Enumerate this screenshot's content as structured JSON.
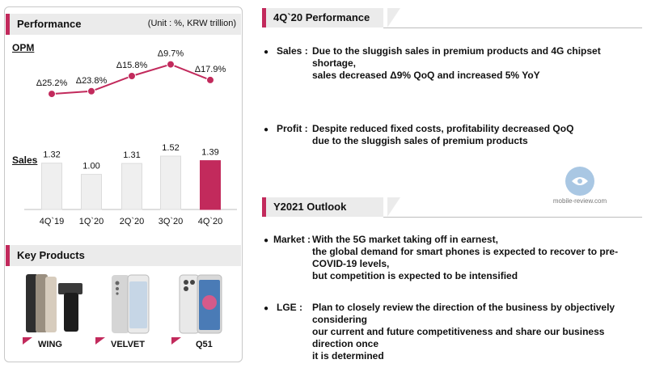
{
  "left_panel": {
    "header_title": "Performance",
    "unit": "(Unit : %, KRW trillion)",
    "opm_label": "OPM",
    "sales_label": "Sales",
    "key_products_title": "Key Products",
    "products": [
      {
        "name": "WING"
      },
      {
        "name": "VELVET"
      },
      {
        "name": "Q51"
      }
    ]
  },
  "chart_data": [
    {
      "type": "line",
      "categories": [
        "4Q`19",
        "1Q`20",
        "2Q`20",
        "3Q`20",
        "4Q`20"
      ],
      "values": [
        -25.2,
        -23.8,
        -15.8,
        -9.7,
        -17.9
      ],
      "labels": [
        "Δ25.2%",
        "Δ23.8%",
        "Δ15.8%",
        "Δ9.7%",
        "Δ17.9%"
      ],
      "title": "OPM",
      "color": "#c22a5c"
    },
    {
      "type": "bar",
      "categories": [
        "4Q`19",
        "1Q`20",
        "2Q`20",
        "3Q`20",
        "4Q`20"
      ],
      "values": [
        1.32,
        1.0,
        1.31,
        1.52,
        1.39
      ],
      "labels": [
        "1.32",
        "1.00",
        "1.31",
        "1.52",
        "1.39"
      ],
      "title": "Sales",
      "bar_color": "#efefef",
      "highlight_color": "#c22a5c",
      "highlight_index": 4
    }
  ],
  "right": {
    "perf_title": "4Q`20 Performance",
    "perf_items": [
      {
        "key": "Sales :",
        "lines": [
          "Due to the sluggish sales in premium products and 4G chipset shortage,",
          "sales decreased Δ9% QoQ and increased 5% YoY"
        ]
      },
      {
        "key": "Profit :",
        "lines": [
          "Despite reduced fixed costs, profitability decreased QoQ",
          "due to the sluggish sales of premium products"
        ]
      }
    ],
    "outlook_title": "Y2021 Outlook",
    "outlook_items": [
      {
        "key": "Market :",
        "lines": [
          "With the 5G market taking off in earnest,",
          "the global demand for smart phones is expected to recover to pre-COVID-19 levels,",
          "but competition is expected to be intensified"
        ]
      },
      {
        "key": "LGE :",
        "lines": [
          "Plan to closely review the direction of the business by objectively considering",
          "our current and future competitiveness and share our business direction once",
          "it is determined"
        ]
      }
    ]
  },
  "watermark": {
    "text": "mobile-review.com"
  }
}
